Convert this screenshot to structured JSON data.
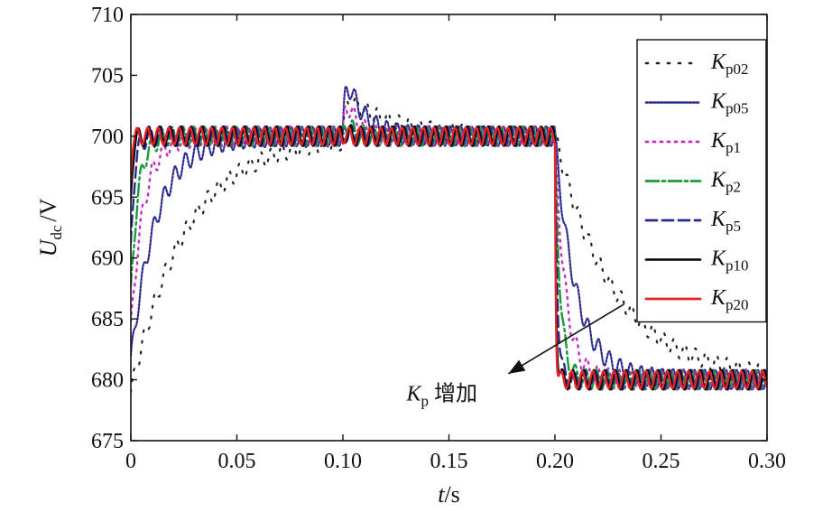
{
  "chart_data": {
    "type": "line",
    "title": "",
    "xlabel_main": "t",
    "xlabel_unit": "/s",
    "ylabel_main": "U",
    "ylabel_sub": "dc",
    "ylabel_unit": "/V",
    "xlim": [
      0,
      0.3
    ],
    "ylim": [
      675,
      710
    ],
    "xticks": [
      0,
      0.05,
      0.1,
      0.15,
      0.2,
      0.25,
      0.3
    ],
    "xtick_labels": [
      "0",
      "0.05",
      "0.10",
      "0.15",
      "0.20",
      "0.25",
      "0.30"
    ],
    "yticks": [
      675,
      680,
      685,
      690,
      695,
      700,
      705,
      710
    ],
    "ytick_labels": [
      "675",
      "680",
      "685",
      "690",
      "695",
      "700",
      "705",
      "710"
    ],
    "legend_position": "top-right",
    "annotation": {
      "text_main": "K",
      "text_sub": "p",
      "text_rest": " 增加",
      "arrow_from": [
        0.2325,
        686.2
      ],
      "arrow_to": [
        0.178,
        680.5
      ],
      "text_anchor": [
        0.13,
        678.3
      ]
    },
    "series": [
      {
        "name_main": "K",
        "name_sub": "p02",
        "color": "#222222",
        "dash": "2,10",
        "width": 2.2,
        "tau_start": 0.026,
        "start": 679.0,
        "peak_delta": 3.4,
        "tau_peak": 0.022,
        "tau_drop": 0.028,
        "ripple": 0.7
      },
      {
        "name_main": "K",
        "name_sub": "p05",
        "color": "#2b2b8f",
        "dash": "2,2",
        "width": 2.2,
        "tau_start": 0.012,
        "start": 681.5,
        "peak_delta": 6.2,
        "tau_peak": 0.008,
        "tau_drop": 0.01,
        "ripple": 0.8
      },
      {
        "name_main": "K",
        "name_sub": "p1",
        "color": "#c42ac4",
        "dash": "2,6",
        "width": 2.4,
        "tau_start": 0.006,
        "start": 684.0,
        "peak_delta": 4.5,
        "tau_peak": 0.005,
        "tau_drop": 0.005,
        "ripple": 0.8
      },
      {
        "name_main": "K",
        "name_sub": "p2",
        "color": "#1a9a3a",
        "dash": "14,4,3,4",
        "width": 2.4,
        "tau_start": 0.0035,
        "start": 687.0,
        "peak_delta": 2.3,
        "tau_peak": 0.003,
        "tau_drop": 0.0025,
        "ripple": 0.8
      },
      {
        "name_main": "K",
        "name_sub": "p5",
        "color": "#2a2a8a",
        "dash": "12,6",
        "width": 2.4,
        "tau_start": 0.0018,
        "start": 691.0,
        "peak_delta": 1.2,
        "tau_peak": 0.0018,
        "tau_drop": 0.0012,
        "ripple": 0.8
      },
      {
        "name_main": "K",
        "name_sub": "p10",
        "color": "#000000",
        "dash": "",
        "width": 2.2,
        "tau_start": 0.001,
        "start": 695.0,
        "peak_delta": 1.0,
        "tau_peak": 0.0012,
        "tau_drop": 0.0006,
        "ripple": 0.8
      },
      {
        "name_main": "K",
        "name_sub": "p20",
        "color": "#e3242b",
        "dash": "",
        "width": 2.4,
        "tau_start": 0.0006,
        "start": 697.0,
        "peak_delta": 0.8,
        "tau_peak": 0.0008,
        "tau_drop": 0.0004,
        "ripple": 0.7
      }
    ]
  }
}
